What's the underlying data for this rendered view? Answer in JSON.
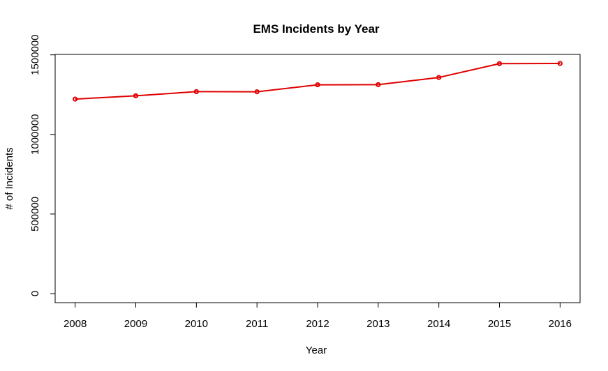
{
  "chart_data": {
    "type": "line",
    "title": "EMS Incidents by Year",
    "xlabel": "Year",
    "ylabel": "# of Incidents",
    "x": [
      2008,
      2009,
      2010,
      2011,
      2012,
      2013,
      2014,
      2015,
      2016
    ],
    "series": [
      {
        "values": [
          1222000,
          1243000,
          1269000,
          1268000,
          1312000,
          1313000,
          1358000,
          1445000,
          1446000
        ],
        "color": "#e00000"
      }
    ],
    "xlim": [
      2007.67,
      2016.33
    ],
    "ylim": [
      -57000,
      1503000
    ],
    "x_ticks": [
      "2008",
      "2009",
      "2010",
      "2011",
      "2012",
      "2013",
      "2014",
      "2015",
      "2016"
    ],
    "y_ticks": [
      "0",
      "500000",
      "1000000",
      "1500000"
    ],
    "y_tick_values": [
      0,
      500000,
      1000000,
      1500000
    ],
    "grid": false,
    "legend": "none",
    "marker": "open-circle"
  }
}
